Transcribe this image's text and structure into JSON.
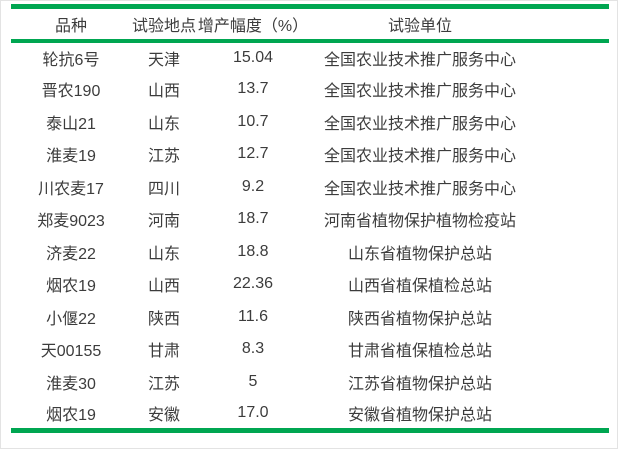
{
  "colors": {
    "accent_green": "#00A651",
    "text": "#3c3c3c"
  },
  "table": {
    "column_keys": [
      "variety",
      "location",
      "yield_increase_pct",
      "test_unit"
    ],
    "columns": [
      "品种",
      "试验地点",
      "增产幅度（%）",
      "试验单位"
    ],
    "rows": [
      [
        "轮抗6号",
        "天津",
        "15.04",
        "全国农业技术推广服务中心"
      ],
      [
        "晋农190",
        "山西",
        "13.7",
        "全国农业技术推广服务中心"
      ],
      [
        "泰山21",
        "山东",
        "10.7",
        "全国农业技术推广服务中心"
      ],
      [
        "淮麦19",
        "江苏",
        "12.7",
        "全国农业技术推广服务中心"
      ],
      [
        "川农麦17",
        "四川",
        "9.2",
        "全国农业技术推广服务中心"
      ],
      [
        "郑麦9023",
        "河南",
        "18.7",
        "河南省植物保护植物检疫站"
      ],
      [
        "济麦22",
        "山东",
        "18.8",
        "山东省植物保护总站"
      ],
      [
        "烟农19",
        "山西",
        "22.36",
        "山西省植保植检总站"
      ],
      [
        "小偃22",
        "陕西",
        "11.6",
        "陕西省植物保护总站"
      ],
      [
        "天00155",
        "甘肃",
        "8.3",
        "甘肃省植保植检总站"
      ],
      [
        "淮麦30",
        "江苏",
        "5",
        "江苏省植物保护总站"
      ],
      [
        "烟农19",
        "安徽",
        "17.0",
        "安徽省植物保护总站"
      ]
    ]
  },
  "chart_data": {
    "type": "table",
    "title": "",
    "columns": [
      "品种",
      "试验地点",
      "增产幅度（%）",
      "试验单位"
    ],
    "rows": [
      [
        "轮抗6号",
        "天津",
        15.04,
        "全国农业技术推广服务中心"
      ],
      [
        "晋农190",
        "山西",
        13.7,
        "全国农业技术推广服务中心"
      ],
      [
        "泰山21",
        "山东",
        10.7,
        "全国农业技术推广服务中心"
      ],
      [
        "淮麦19",
        "江苏",
        12.7,
        "全国农业技术推广服务中心"
      ],
      [
        "川农麦17",
        "四川",
        9.2,
        "全国农业技术推广服务中心"
      ],
      [
        "郑麦9023",
        "河南",
        18.7,
        "河南省植物保护植物检疫站"
      ],
      [
        "济麦22",
        "山东",
        18.8,
        "山东省植物保护总站"
      ],
      [
        "烟农19",
        "山西",
        22.36,
        "山西省植保植检总站"
      ],
      [
        "小偃22",
        "陕西",
        11.6,
        "陕西省植物保护总站"
      ],
      [
        "天00155",
        "甘肃",
        8.3,
        "甘肃省植保植检总站"
      ],
      [
        "淮麦30",
        "江苏",
        5,
        "江苏省植物保护总站"
      ],
      [
        "烟农19",
        "安徽",
        17.0,
        "安徽省植物保护总站"
      ]
    ]
  }
}
